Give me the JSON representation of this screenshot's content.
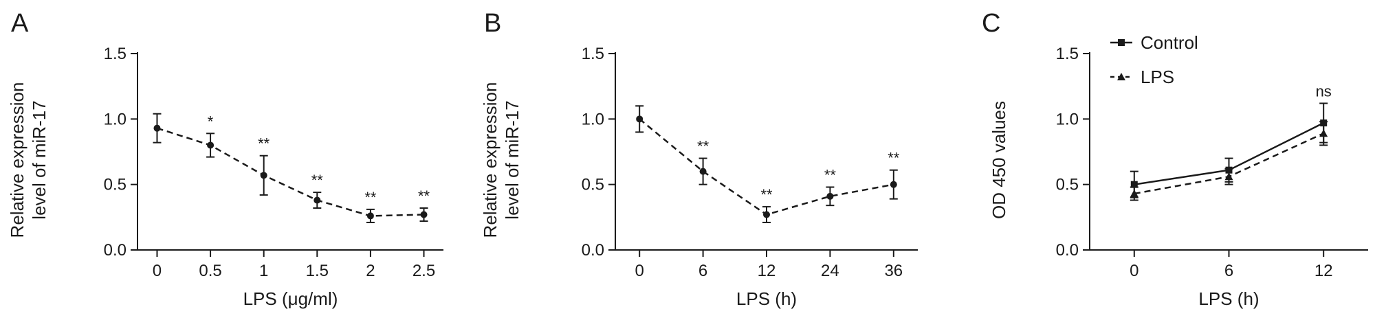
{
  "chart_data": [
    {
      "panel": "A",
      "type": "line",
      "xlabel": "LPS (μg/ml)",
      "ylabel": [
        "Relative expression",
        "level of miR-17"
      ],
      "ylim": [
        0,
        1.5
      ],
      "yticks": [
        "0.0",
        "0.5",
        "1.0",
        "1.5"
      ],
      "categories": [
        "0",
        "0.5",
        "1",
        "1.5",
        "2",
        "2.5"
      ],
      "series": [
        {
          "style": "dashed",
          "marker": "circle",
          "values": [
            0.93,
            0.8,
            0.57,
            0.38,
            0.26,
            0.27
          ],
          "errors": [
            0.11,
            0.09,
            0.15,
            0.06,
            0.05,
            0.05
          ]
        }
      ],
      "annotations": [
        "",
        "*",
        "**",
        "**",
        "**",
        "**"
      ]
    },
    {
      "panel": "B",
      "type": "line",
      "xlabel": "LPS (h)",
      "ylabel": [
        "Relative expression",
        "level of miR-17"
      ],
      "ylim": [
        0,
        1.5
      ],
      "yticks": [
        "0.0",
        "0.5",
        "1.0",
        "1.5"
      ],
      "categories": [
        "0",
        "6",
        "12",
        "24",
        "36"
      ],
      "series": [
        {
          "style": "dashed",
          "marker": "circle",
          "values": [
            1.0,
            0.6,
            0.27,
            0.41,
            0.5
          ],
          "errors": [
            0.1,
            0.1,
            0.06,
            0.07,
            0.11
          ]
        }
      ],
      "annotations": [
        "",
        "**",
        "**",
        "**",
        "**"
      ]
    },
    {
      "panel": "C",
      "type": "line",
      "xlabel": "LPS (h)",
      "ylabel": [
        "OD 450 values"
      ],
      "ylim": [
        0,
        1.5
      ],
      "yticks": [
        "0.0",
        "0.5",
        "1.0",
        "1.5"
      ],
      "categories": [
        "0",
        "6",
        "12"
      ],
      "legend_position": "top-left",
      "series": [
        {
          "name": "Control",
          "style": "solid",
          "marker": "square",
          "values": [
            0.5,
            0.61,
            0.97
          ],
          "errors": [
            0.1,
            0.09,
            0.15
          ]
        },
        {
          "name": "LPS",
          "style": "dashed",
          "marker": "triangle",
          "values": [
            0.43,
            0.56,
            0.89
          ],
          "errors": [
            0.05,
            0.06,
            0.09
          ]
        }
      ],
      "annotations": [
        "",
        "",
        "ns"
      ]
    }
  ]
}
